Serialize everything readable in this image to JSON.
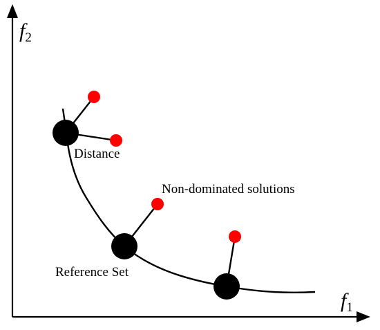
{
  "axes": {
    "x_label": "f",
    "x_subscript": "1",
    "y_label": "f",
    "y_subscript": "2"
  },
  "labels": {
    "distance": "Distance",
    "non_dominated": "Non-dominated solutions",
    "reference_set": "Reference Set"
  },
  "colors": {
    "reference_point": "#000000",
    "solution_point": "#ff0000",
    "line": "#000000"
  }
}
